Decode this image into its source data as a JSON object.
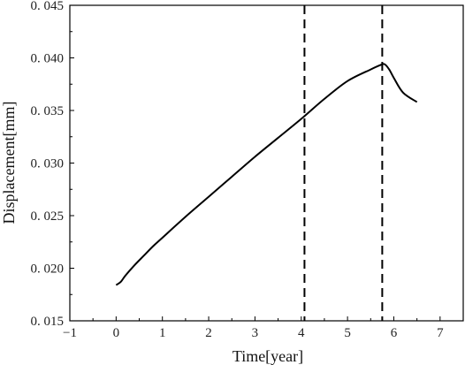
{
  "chart_data": {
    "type": "line",
    "title": "",
    "xlabel": "Time[year]",
    "ylabel": "Displacement[mm]",
    "xlim": [
      -1,
      7.5
    ],
    "ylim": [
      0.015,
      0.045
    ],
    "x_ticks": [
      -1,
      0,
      1,
      2,
      3,
      4,
      5,
      6,
      7
    ],
    "x_tick_labels": [
      "−1",
      "0",
      "1",
      "2",
      "3",
      "4",
      "5",
      "6",
      "7"
    ],
    "y_ticks": [
      0.015,
      0.02,
      0.025,
      0.03,
      0.035,
      0.04,
      0.045
    ],
    "y_tick_labels": [
      "0. 015",
      "0. 020",
      "0. 025",
      "0. 030",
      "0. 035",
      "0. 040",
      "0. 045"
    ],
    "grid": false,
    "legend": "none",
    "series": [
      {
        "color": "#000000",
        "x": [
          0.0,
          0.1,
          0.2,
          0.4,
          0.6,
          0.8,
          1.0,
          1.5,
          2.0,
          2.5,
          3.0,
          3.5,
          4.0,
          4.5,
          5.0,
          5.5,
          5.7,
          5.8,
          5.9,
          6.0,
          6.2,
          6.5
        ],
        "y": [
          0.0184,
          0.0187,
          0.0193,
          0.0203,
          0.0212,
          0.0221,
          0.0229,
          0.0249,
          0.0268,
          0.0287,
          0.0306,
          0.0324,
          0.0342,
          0.0361,
          0.0378,
          0.0389,
          0.0393,
          0.0394,
          0.0389,
          0.0381,
          0.0367,
          0.0358
        ]
      }
    ],
    "vlines": [
      {
        "x": 4.07,
        "style": "dashed",
        "color": "#000000"
      },
      {
        "x": 5.75,
        "style": "dashed",
        "color": "#000000"
      }
    ]
  }
}
